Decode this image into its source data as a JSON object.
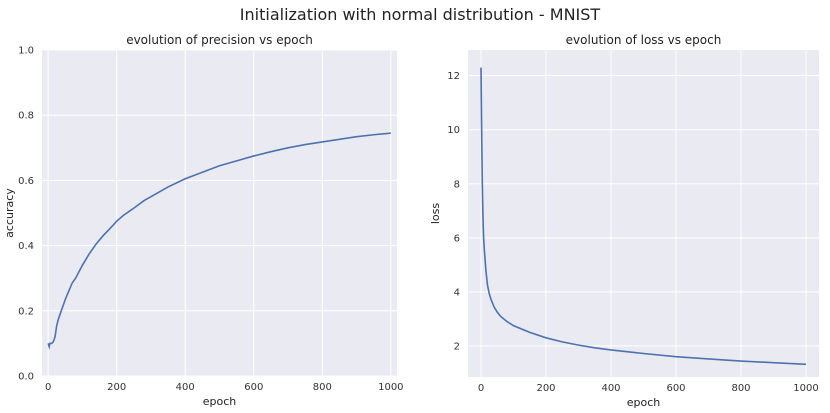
{
  "suptitle": "Initialization with normal distribution - MNIST",
  "chart_data": [
    {
      "type": "line",
      "title": "evolution of precision vs epoch",
      "xlabel": "epoch",
      "ylabel": "accuracy",
      "xlim": [
        -18,
        1018
      ],
      "ylim": [
        0.0,
        1.0
      ],
      "xticks": [
        0,
        200,
        400,
        600,
        800,
        1000
      ],
      "yticks": [
        0.0,
        0.2,
        0.4,
        0.6,
        0.8,
        1.0
      ],
      "xtick_labels": [
        "0",
        "200",
        "400",
        "600",
        "800",
        "1000"
      ],
      "ytick_labels": [
        "0.0",
        "0.2",
        "0.4",
        "0.6",
        "0.8",
        "1.0"
      ],
      "grid": true,
      "line_color": "#4c72b0",
      "series": [
        {
          "x": [
            0,
            3,
            5,
            10,
            15,
            20,
            25,
            30,
            40,
            50,
            60,
            70,
            80,
            100,
            120,
            140,
            160,
            180,
            200,
            220,
            250,
            280,
            300,
            350,
            400,
            450,
            500,
            550,
            600,
            650,
            700,
            750,
            800,
            850,
            900,
            950,
            1000
          ],
          "y": [
            0.1,
            0.09,
            0.1,
            0.1,
            0.105,
            0.12,
            0.155,
            0.175,
            0.205,
            0.235,
            0.26,
            0.285,
            0.3,
            0.34,
            0.375,
            0.405,
            0.43,
            0.452,
            0.475,
            0.493,
            0.515,
            0.538,
            0.55,
            0.58,
            0.605,
            0.625,
            0.645,
            0.66,
            0.675,
            0.688,
            0.7,
            0.71,
            0.718,
            0.726,
            0.734,
            0.74,
            0.745
          ]
        }
      ]
    },
    {
      "type": "line",
      "title": "evolution of loss vs epoch",
      "xlabel": "epoch",
      "ylabel": "loss",
      "xlim": [
        -40,
        1040
      ],
      "ylim": [
        0.85,
        12.95
      ],
      "xticks": [
        0,
        200,
        400,
        600,
        800,
        1000
      ],
      "yticks": [
        2,
        4,
        6,
        8,
        10,
        12
      ],
      "xtick_labels": [
        "0",
        "200",
        "400",
        "600",
        "800",
        "1000"
      ],
      "ytick_labels": [
        "2",
        "4",
        "6",
        "8",
        "10",
        "12"
      ],
      "grid": true,
      "line_color": "#4c72b0",
      "series": [
        {
          "x": [
            0,
            2,
            4,
            6,
            8,
            10,
            15,
            20,
            25,
            30,
            40,
            50,
            60,
            80,
            100,
            150,
            200,
            250,
            300,
            350,
            400,
            500,
            600,
            700,
            800,
            900,
            1000
          ],
          "y": [
            12.3,
            10.0,
            8.0,
            6.8,
            6.0,
            5.6,
            4.8,
            4.25,
            3.95,
            3.75,
            3.45,
            3.25,
            3.1,
            2.9,
            2.75,
            2.5,
            2.3,
            2.15,
            2.03,
            1.93,
            1.85,
            1.72,
            1.6,
            1.52,
            1.44,
            1.38,
            1.32
          ]
        }
      ]
    }
  ]
}
